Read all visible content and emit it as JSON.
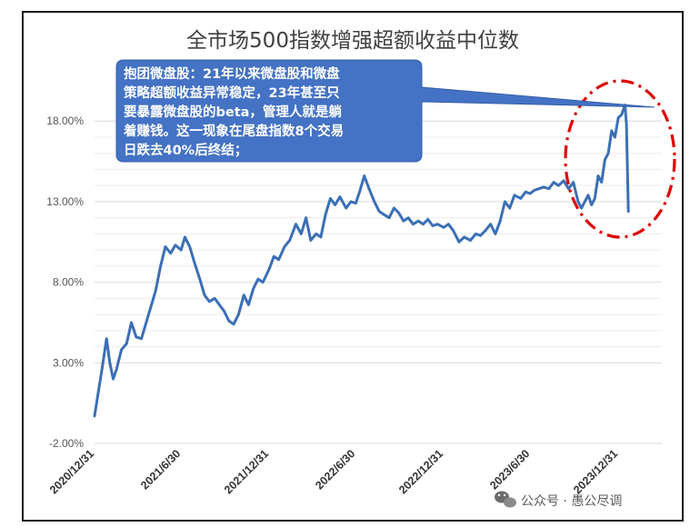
{
  "chart_data": {
    "type": "line",
    "title": "全市场500指数增强超额收益中位数",
    "y_ticks": [
      "18.00%",
      "13.00%",
      "8.00%",
      "3.00%",
      "-2.00%"
    ],
    "y_tick_values": [
      18,
      13,
      8,
      3,
      -2
    ],
    "ylim": [
      -2,
      21
    ],
    "x_ticks": [
      "2020/12/31",
      "2021/6/30",
      "2021/12/31",
      "2022/6/30",
      "2022/12/31",
      "2023/6/30",
      "2023/12/31"
    ],
    "x_tick_values": [
      "2020-12-31",
      "2021-06-30",
      "2021-12-31",
      "2022-06-30",
      "2022-12-31",
      "2023-06-30",
      "2023-12-31"
    ],
    "xlim": [
      "2020-12-31",
      "2024-03-31"
    ],
    "grid": "horizontal",
    "line_color": "#3b6fb6",
    "series": [
      {
        "points": [
          [
            "2020-12-31",
            -0.3
          ],
          [
            "2021-01-08",
            1.2
          ],
          [
            "2021-01-15",
            2.5
          ],
          [
            "2021-01-25",
            4.5
          ],
          [
            "2021-02-01",
            3.0
          ],
          [
            "2021-02-08",
            2.0
          ],
          [
            "2021-02-15",
            2.6
          ],
          [
            "2021-02-25",
            3.8
          ],
          [
            "2021-03-08",
            4.2
          ],
          [
            "2021-03-18",
            5.5
          ],
          [
            "2021-03-28",
            4.6
          ],
          [
            "2021-04-08",
            4.5
          ],
          [
            "2021-04-18",
            5.5
          ],
          [
            "2021-04-28",
            6.5
          ],
          [
            "2021-05-08",
            7.5
          ],
          [
            "2021-05-18",
            9.0
          ],
          [
            "2021-05-28",
            10.2
          ],
          [
            "2021-06-08",
            9.8
          ],
          [
            "2021-06-18",
            10.3
          ],
          [
            "2021-06-30",
            10.0
          ],
          [
            "2021-07-08",
            10.8
          ],
          [
            "2021-07-18",
            10.2
          ],
          [
            "2021-07-28",
            9.2
          ],
          [
            "2021-08-08",
            8.2
          ],
          [
            "2021-08-18",
            7.2
          ],
          [
            "2021-08-28",
            6.8
          ],
          [
            "2021-09-08",
            7.0
          ],
          [
            "2021-09-18",
            6.6
          ],
          [
            "2021-09-28",
            6.2
          ],
          [
            "2021-10-08",
            5.6
          ],
          [
            "2021-10-18",
            5.4
          ],
          [
            "2021-10-28",
            6.0
          ],
          [
            "2021-11-08",
            7.2
          ],
          [
            "2021-11-18",
            6.6
          ],
          [
            "2021-11-28",
            7.6
          ],
          [
            "2021-12-08",
            8.2
          ],
          [
            "2021-12-18",
            8.0
          ],
          [
            "2021-12-31",
            8.8
          ],
          [
            "2022-01-10",
            9.6
          ],
          [
            "2022-01-20",
            9.4
          ],
          [
            "2022-02-01",
            10.2
          ],
          [
            "2022-02-12",
            10.6
          ],
          [
            "2022-02-25",
            11.6
          ],
          [
            "2022-03-08",
            11.0
          ],
          [
            "2022-03-18",
            12.0
          ],
          [
            "2022-03-28",
            10.6
          ],
          [
            "2022-04-08",
            11.0
          ],
          [
            "2022-04-18",
            10.8
          ],
          [
            "2022-04-28",
            12.2
          ],
          [
            "2022-05-08",
            13.2
          ],
          [
            "2022-05-18",
            12.8
          ],
          [
            "2022-05-28",
            13.3
          ],
          [
            "2022-06-10",
            12.6
          ],
          [
            "2022-06-20",
            13.0
          ],
          [
            "2022-06-30",
            12.9
          ],
          [
            "2022-07-08",
            13.6
          ],
          [
            "2022-07-18",
            14.6
          ],
          [
            "2022-07-28",
            13.8
          ],
          [
            "2022-08-08",
            13.0
          ],
          [
            "2022-08-18",
            12.4
          ],
          [
            "2022-08-28",
            12.2
          ],
          [
            "2022-09-08",
            12.0
          ],
          [
            "2022-09-18",
            12.6
          ],
          [
            "2022-09-28",
            12.3
          ],
          [
            "2022-10-08",
            11.8
          ],
          [
            "2022-10-18",
            12.0
          ],
          [
            "2022-10-28",
            11.6
          ],
          [
            "2022-11-08",
            11.8
          ],
          [
            "2022-11-18",
            11.6
          ],
          [
            "2022-11-28",
            11.9
          ],
          [
            "2022-12-08",
            11.5
          ],
          [
            "2022-12-18",
            11.6
          ],
          [
            "2022-12-31",
            11.4
          ],
          [
            "2023-01-10",
            11.6
          ],
          [
            "2023-01-20",
            11.2
          ],
          [
            "2023-02-01",
            10.5
          ],
          [
            "2023-02-12",
            10.8
          ],
          [
            "2023-02-25",
            10.6
          ],
          [
            "2023-03-08",
            11.0
          ],
          [
            "2023-03-18",
            10.9
          ],
          [
            "2023-03-28",
            11.2
          ],
          [
            "2023-04-08",
            11.6
          ],
          [
            "2023-04-18",
            11.0
          ],
          [
            "2023-04-28",
            11.8
          ],
          [
            "2023-05-08",
            13.0
          ],
          [
            "2023-05-18",
            12.6
          ],
          [
            "2023-05-28",
            13.4
          ],
          [
            "2023-06-10",
            13.2
          ],
          [
            "2023-06-20",
            13.6
          ],
          [
            "2023-06-30",
            13.5
          ],
          [
            "2023-07-08",
            13.7
          ],
          [
            "2023-07-18",
            13.8
          ],
          [
            "2023-07-28",
            13.9
          ],
          [
            "2023-08-08",
            13.8
          ],
          [
            "2023-08-18",
            14.2
          ],
          [
            "2023-08-28",
            14.0
          ],
          [
            "2023-09-08",
            14.3
          ],
          [
            "2023-09-18",
            13.8
          ],
          [
            "2023-09-28",
            14.2
          ],
          [
            "2023-10-08",
            13.0
          ],
          [
            "2023-10-15",
            12.6
          ],
          [
            "2023-10-22",
            13.0
          ],
          [
            "2023-10-29",
            13.4
          ],
          [
            "2023-11-05",
            12.8
          ],
          [
            "2023-11-12",
            13.2
          ],
          [
            "2023-11-19",
            14.6
          ],
          [
            "2023-11-26",
            14.2
          ],
          [
            "2023-12-03",
            15.6
          ],
          [
            "2023-12-10",
            16.0
          ],
          [
            "2023-12-17",
            17.4
          ],
          [
            "2023-12-24",
            17.0
          ],
          [
            "2023-12-31",
            18.2
          ],
          [
            "2024-01-07",
            18.4
          ],
          [
            "2024-01-14",
            19.0
          ],
          [
            "2024-01-17",
            17.8
          ],
          [
            "2024-01-21",
            12.4
          ]
        ]
      }
    ],
    "annotation": {
      "lines": [
        "抱团微盘股：21年以来微盘股和微盘",
        "策略超额收益异常稳定，23年甚至只",
        "要暴露微盘股的beta，管理人就是躺",
        "着赚钱。这一现象在尾盘指数8个交易",
        "日跌去40%后终结；"
      ],
      "box_color": "#4472c4",
      "highlight": "red-dash-dot-ellipse"
    }
  },
  "watermark": {
    "icon": "wechat-icon",
    "text": "公众号 · 愚公尽调"
  }
}
